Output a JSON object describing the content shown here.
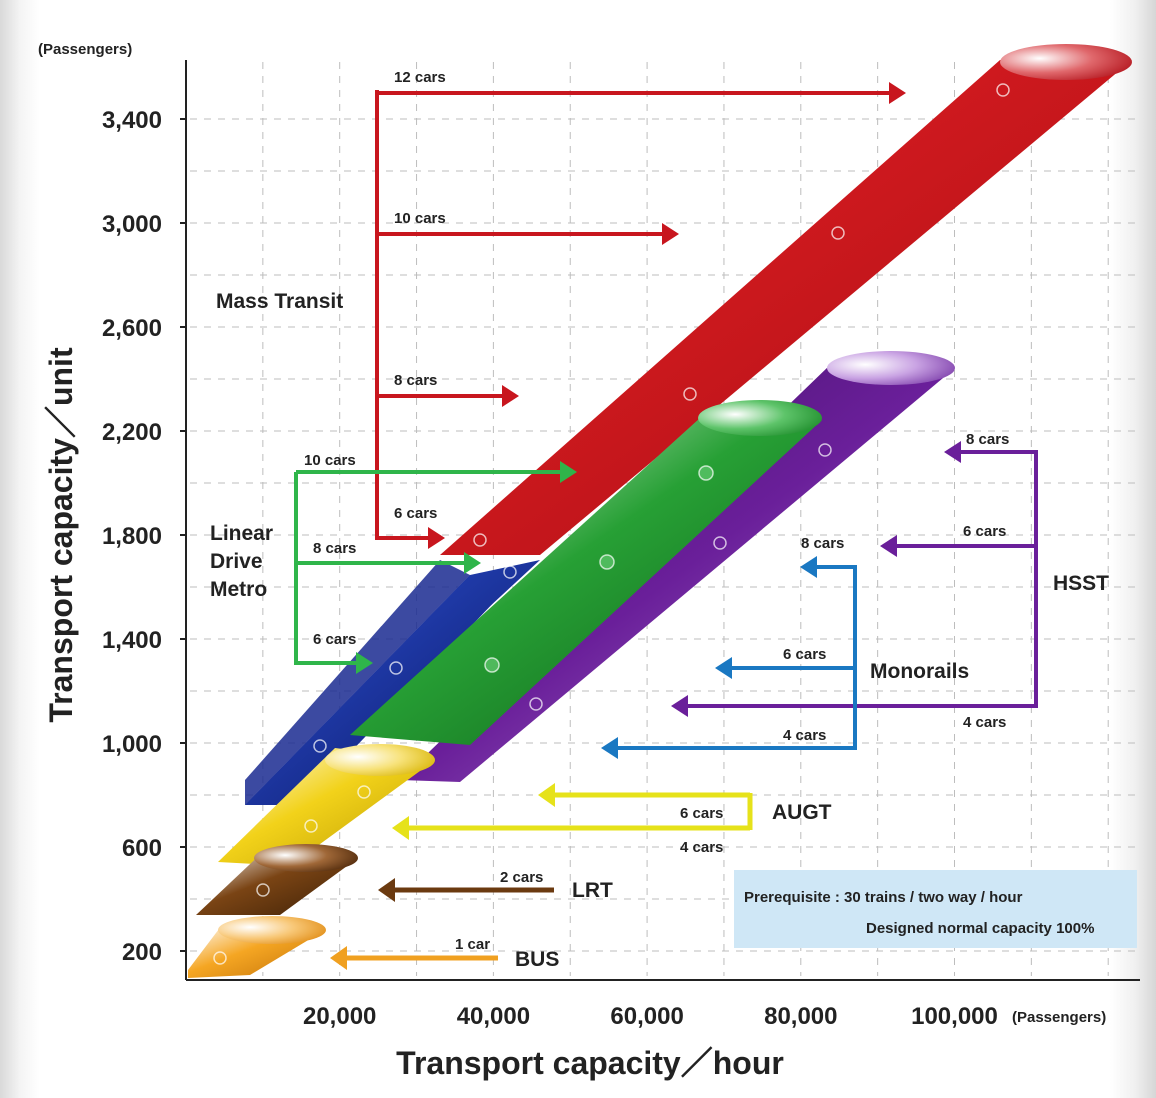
{
  "chart_data": {
    "type": "diagram-chart",
    "xlabel": "Transport capacity／hour",
    "ylabel": "Transport capacity／unit",
    "x_unit": "(Passengers)",
    "y_unit": "(Passengers)",
    "xlim": [
      0,
      112000
    ],
    "ylim": [
      0,
      3600
    ],
    "x_ticks": [
      {
        "v": 20000,
        "label": "20,000"
      },
      {
        "v": 40000,
        "label": "40,000"
      },
      {
        "v": 60000,
        "label": "60,000"
      },
      {
        "v": 80000,
        "label": "80,000"
      },
      {
        "v": 100000,
        "label": "100,000"
      }
    ],
    "y_ticks": [
      {
        "v": 200,
        "label": "200"
      },
      {
        "v": 600,
        "label": "600"
      },
      {
        "v": 1000,
        "label": "1,000"
      },
      {
        "v": 1400,
        "label": "1,400"
      },
      {
        "v": 1800,
        "label": "1,800"
      },
      {
        "v": 2200,
        "label": "2,200"
      },
      {
        "v": 2600,
        "label": "2,600"
      },
      {
        "v": 3000,
        "label": "3,000"
      },
      {
        "v": 3400,
        "label": "3,400"
      }
    ],
    "grid": true,
    "systems": [
      {
        "name": "BUS",
        "color": "#f0a020",
        "points": [
          [
            4000,
            80
          ],
          [
            17000,
            200
          ]
        ]
      },
      {
        "name": "LRT",
        "color": "#6b3a10",
        "points": [
          [
            2000,
            250
          ],
          [
            20000,
            400
          ]
        ]
      },
      {
        "name": "AUGT",
        "color": "#e6c410",
        "points": [
          [
            5000,
            450
          ],
          [
            27000,
            850
          ]
        ]
      },
      {
        "name": "Linear Drive Metro",
        "color": "#1a2a90",
        "points": [
          [
            12000,
            700
          ],
          [
            46000,
            1650
          ]
        ]
      },
      {
        "name": "Monorails",
        "color": "#1f8a2a",
        "points": [
          [
            28000,
            950
          ],
          [
            70000,
            2150
          ]
        ]
      },
      {
        "name": "HSST",
        "color": "#6a1f9a",
        "points": [
          [
            35000,
            800
          ],
          [
            88000,
            2300
          ]
        ]
      },
      {
        "name": "Mass Transit",
        "color": "#c8161e",
        "points": [
          [
            38000,
            1600
          ],
          [
            112000,
            3500
          ]
        ]
      }
    ],
    "annotations": {
      "mass_transit": {
        "label": "Mass Transit",
        "cars": [
          "12 cars",
          "10 cars",
          "8 cars",
          "6 cars"
        ]
      },
      "linear": {
        "label_lines": [
          "Linear",
          "Drive",
          "Metro"
        ],
        "cars": [
          "10 cars",
          "8 cars",
          "6 cars"
        ]
      },
      "hsst": {
        "label": "HSST",
        "cars": [
          "8 cars",
          "6 cars",
          "4 cars"
        ]
      },
      "monorails": {
        "label": "Monorails",
        "cars": [
          "8 cars",
          "6 cars",
          "4 cars"
        ]
      },
      "augt": {
        "label": "AUGT",
        "cars": [
          "6 cars",
          "4 cars"
        ]
      },
      "lrt": {
        "label": "LRT",
        "cars": [
          "2 cars"
        ]
      },
      "bus": {
        "label": "BUS",
        "cars": [
          "1 car"
        ]
      }
    },
    "note": {
      "line1": "Prerequisite : 30 trains / two way / hour",
      "line2": "Designed normal capacity  100%"
    }
  }
}
